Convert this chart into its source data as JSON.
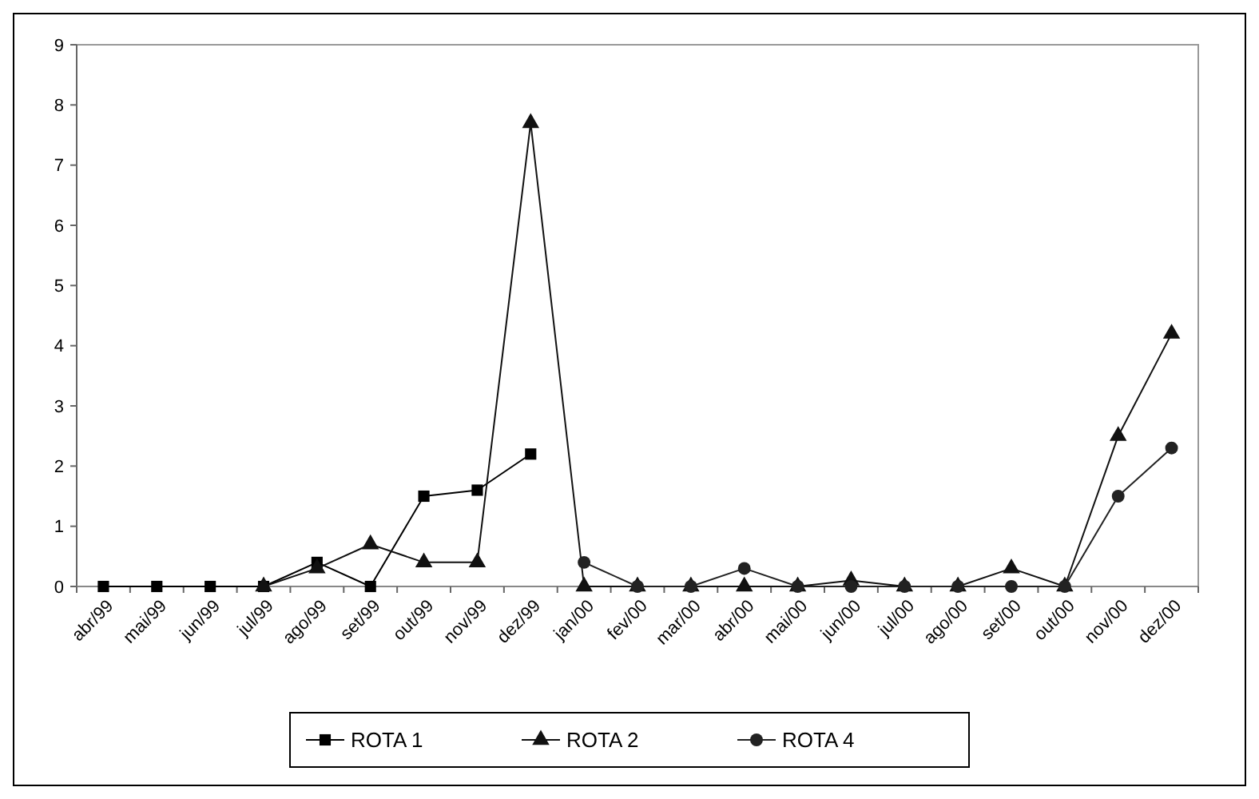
{
  "chart_data": {
    "type": "line",
    "categories": [
      "abr/99",
      "mai/99",
      "jun/99",
      "jul/99",
      "ago/99",
      "set/99",
      "out/99",
      "nov/99",
      "dez/99",
      "jan/00",
      "fev/00",
      "mar/00",
      "abr/00",
      "mai/00",
      "jun/00",
      "jul/00",
      "ago/00",
      "set/00",
      "out/00",
      "nov/00",
      "dez/00"
    ],
    "series": [
      {
        "name": "ROTA 1",
        "color": "#000000",
        "marker": "square",
        "values": [
          0,
          0,
          0,
          0,
          0.4,
          0,
          1.5,
          1.6,
          2.2,
          null,
          null,
          null,
          null,
          null,
          null,
          null,
          null,
          null,
          null,
          null,
          null
        ]
      },
      {
        "name": "ROTA 2",
        "color": "#111111",
        "marker": "triangle",
        "values": [
          null,
          null,
          null,
          0,
          0.3,
          0.7,
          0.4,
          0.4,
          7.7,
          0,
          0,
          0,
          0,
          0,
          0.1,
          0,
          0,
          0.3,
          0,
          2.5,
          4.2
        ]
      },
      {
        "name": "ROTA 4",
        "color": "#222222",
        "marker": "circle",
        "values": [
          null,
          null,
          null,
          null,
          null,
          null,
          null,
          null,
          null,
          0.4,
          0,
          0,
          0.3,
          0,
          0,
          0,
          0,
          0,
          0,
          1.5,
          2.3
        ]
      }
    ],
    "ylim": [
      0,
      9
    ],
    "yticks": [
      0,
      1,
      2,
      3,
      4,
      5,
      6,
      7,
      8,
      9
    ],
    "grid": false,
    "legend": "bottom",
    "line_style": "solid"
  }
}
